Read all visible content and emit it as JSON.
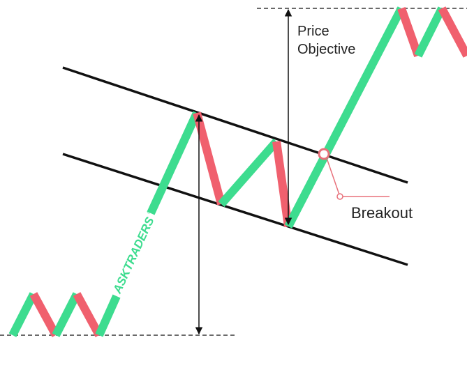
{
  "colors": {
    "bull": "#3ddc8f",
    "bear": "#f0606e",
    "line": "#111111",
    "callout": "#e8707a",
    "background": "#ffffff"
  },
  "labels": {
    "price_objective_line1": "Price",
    "price_objective_line2": "Objective",
    "breakout": "Breakout",
    "watermark": "ASKTRADERS",
    "watermark_mark": "®"
  }
}
